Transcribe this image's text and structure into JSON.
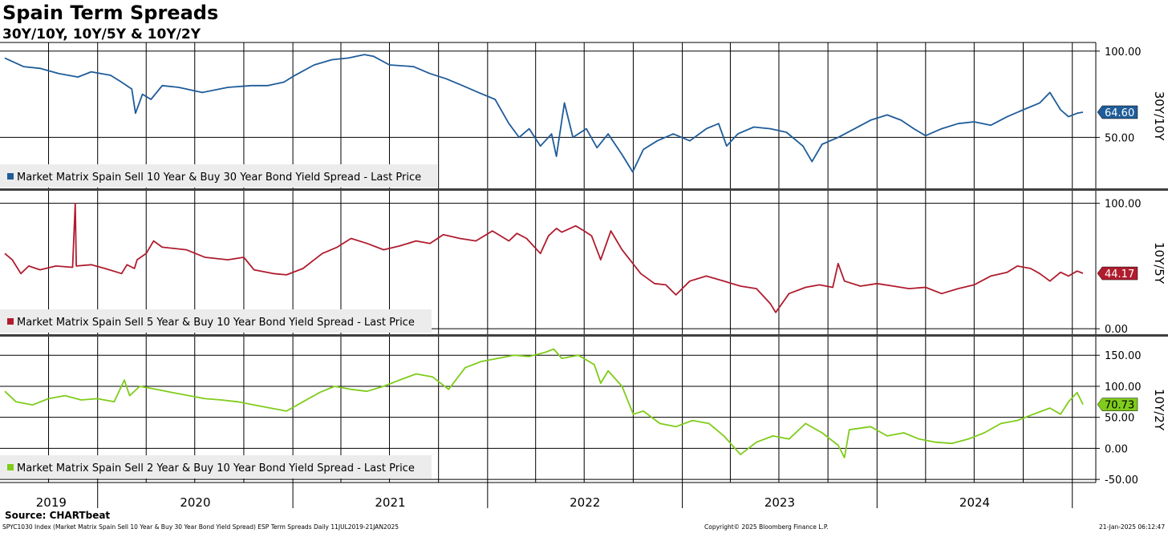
{
  "header": {
    "title": "Spain Term Spreads",
    "subtitle": "30Y/10Y, 10Y/5Y & 10Y/2Y"
  },
  "footer": {
    "source": "Source: CHARTbeat",
    "description": "SPYC1030 Index (Market Matrix Spain Sell 10 Year & Buy 30 Year Bond Yield Spread) ESP Term Spreads  Daily 11JUL2019-21JAN2025",
    "copyright": "Copyright© 2025 Bloomberg Finance L.P.",
    "timestamp": "21-Jan-2025 06:12:47"
  },
  "colors": {
    "blue": "#1f5c99",
    "red": "#b01c2e",
    "green": "#7fcc1a",
    "grid": "#000000",
    "divider": "#404040"
  },
  "chart_data": {
    "type": "line",
    "x_range": [
      "2019-07-11",
      "2025-01-21"
    ],
    "x_axis": {
      "year_labels": [
        "2019",
        "2020",
        "2021",
        "2022",
        "2023",
        "2024"
      ]
    },
    "panels": [
      {
        "id": "30y10y",
        "axis_title": "30Y/10Y",
        "ylim": [
          20,
          105
        ],
        "ticks": [
          100,
          50
        ],
        "tick_labels": [
          "100.00",
          "50.00"
        ],
        "legend": "Market Matrix Spain Sell 10 Year & Buy 30 Year Bond Yield Spread - Last Price",
        "last_value": 64.6,
        "last_label": "64.60",
        "color": "blue",
        "series": [
          [
            "2019-07-11",
            96
          ],
          [
            "2019-08-15",
            91
          ],
          [
            "2019-09-15",
            90
          ],
          [
            "2019-10-20",
            87
          ],
          [
            "2019-11-25",
            85
          ],
          [
            "2019-12-20",
            88
          ],
          [
            "2020-01-25",
            86
          ],
          [
            "2020-02-15",
            82
          ],
          [
            "2020-03-05",
            78
          ],
          [
            "2020-03-12",
            64
          ],
          [
            "2020-03-25",
            75
          ],
          [
            "2020-04-10",
            72
          ],
          [
            "2020-05-01",
            80
          ],
          [
            "2020-06-01",
            79
          ],
          [
            "2020-07-15",
            76
          ],
          [
            "2020-09-01",
            79
          ],
          [
            "2020-10-15",
            80
          ],
          [
            "2020-11-15",
            80
          ],
          [
            "2020-12-15",
            82
          ],
          [
            "2021-01-05",
            86
          ],
          [
            "2021-02-10",
            92
          ],
          [
            "2021-03-15",
            95
          ],
          [
            "2021-04-15",
            96
          ],
          [
            "2021-05-15",
            98
          ],
          [
            "2021-06-01",
            97
          ],
          [
            "2021-07-01",
            92
          ],
          [
            "2021-08-15",
            91
          ],
          [
            "2021-09-15",
            87
          ],
          [
            "2021-10-15",
            84
          ],
          [
            "2021-11-15",
            80
          ],
          [
            "2021-12-15",
            76
          ],
          [
            "2022-01-15",
            72
          ],
          [
            "2022-02-10",
            58
          ],
          [
            "2022-03-01",
            50
          ],
          [
            "2022-03-20",
            55
          ],
          [
            "2022-04-10",
            45
          ],
          [
            "2022-05-01",
            52
          ],
          [
            "2022-05-10",
            39
          ],
          [
            "2022-05-25",
            70
          ],
          [
            "2022-06-10",
            50
          ],
          [
            "2022-07-05",
            55
          ],
          [
            "2022-07-25",
            44
          ],
          [
            "2022-08-15",
            52
          ],
          [
            "2022-09-10",
            40
          ],
          [
            "2022-09-30",
            30
          ],
          [
            "2022-10-20",
            43
          ],
          [
            "2022-11-15",
            48
          ],
          [
            "2022-12-15",
            52
          ],
          [
            "2023-01-15",
            48
          ],
          [
            "2023-02-15",
            55
          ],
          [
            "2023-03-10",
            58
          ],
          [
            "2023-03-25",
            45
          ],
          [
            "2023-04-15",
            52
          ],
          [
            "2023-05-15",
            56
          ],
          [
            "2023-06-15",
            55
          ],
          [
            "2023-07-15",
            53
          ],
          [
            "2023-08-15",
            45
          ],
          [
            "2023-09-01",
            36
          ],
          [
            "2023-09-20",
            46
          ],
          [
            "2023-10-20",
            50
          ],
          [
            "2023-11-20",
            55
          ],
          [
            "2023-12-20",
            60
          ],
          [
            "2024-01-20",
            63
          ],
          [
            "2024-02-15",
            60
          ],
          [
            "2024-03-10",
            55
          ],
          [
            "2024-04-01",
            51
          ],
          [
            "2024-05-01",
            55
          ],
          [
            "2024-06-01",
            58
          ],
          [
            "2024-07-01",
            59
          ],
          [
            "2024-08-01",
            57
          ],
          [
            "2024-09-01",
            62
          ],
          [
            "2024-10-01",
            66
          ],
          [
            "2024-11-01",
            70
          ],
          [
            "2024-11-20",
            76
          ],
          [
            "2024-12-10",
            66
          ],
          [
            "2024-12-25",
            62
          ],
          [
            "2025-01-10",
            64
          ],
          [
            "2025-01-21",
            64.6
          ]
        ]
      },
      {
        "id": "10y5y",
        "axis_title": "10Y/5Y",
        "ylim": [
          -5,
          110
        ],
        "ticks": [
          100,
          0
        ],
        "tick_labels": [
          "100.00",
          "0.00"
        ],
        "legend": "Market Matrix Spain Sell 5 Year & Buy 10 Year Bond Yield Spread - Last Price",
        "last_value": 44.17,
        "last_label": "44.17",
        "color": "red",
        "series": [
          [
            "2019-07-11",
            60
          ],
          [
            "2019-07-25",
            55
          ],
          [
            "2019-08-10",
            44
          ],
          [
            "2019-08-25",
            50
          ],
          [
            "2019-09-15",
            47
          ],
          [
            "2019-10-15",
            50
          ],
          [
            "2019-11-15",
            49
          ],
          [
            "2019-11-20",
            100
          ],
          [
            "2019-11-22",
            50
          ],
          [
            "2019-12-20",
            51
          ],
          [
            "2020-01-15",
            48
          ],
          [
            "2020-02-15",
            44
          ],
          [
            "2020-02-25",
            51
          ],
          [
            "2020-03-10",
            48
          ],
          [
            "2020-03-15",
            55
          ],
          [
            "2020-04-01",
            60
          ],
          [
            "2020-04-15",
            70
          ],
          [
            "2020-05-01",
            65
          ],
          [
            "2020-06-15",
            63
          ],
          [
            "2020-07-20",
            57
          ],
          [
            "2020-09-01",
            55
          ],
          [
            "2020-10-01",
            57
          ],
          [
            "2020-10-20",
            47
          ],
          [
            "2020-11-25",
            44
          ],
          [
            "2020-12-20",
            43
          ],
          [
            "2021-01-20",
            48
          ],
          [
            "2021-02-10",
            55
          ],
          [
            "2021-02-25",
            60
          ],
          [
            "2021-03-25",
            65
          ],
          [
            "2021-04-20",
            72
          ],
          [
            "2021-05-20",
            68
          ],
          [
            "2021-06-20",
            63
          ],
          [
            "2021-07-20",
            66
          ],
          [
            "2021-08-20",
            70
          ],
          [
            "2021-09-15",
            68
          ],
          [
            "2021-10-10",
            75
          ],
          [
            "2021-11-10",
            72
          ],
          [
            "2021-12-10",
            70
          ],
          [
            "2022-01-10",
            78
          ],
          [
            "2022-02-10",
            70
          ],
          [
            "2022-02-25",
            76
          ],
          [
            "2022-03-15",
            72
          ],
          [
            "2022-04-10",
            60
          ],
          [
            "2022-04-25",
            74
          ],
          [
            "2022-05-10",
            80
          ],
          [
            "2022-05-20",
            77
          ],
          [
            "2022-06-15",
            82
          ],
          [
            "2022-07-01",
            78
          ],
          [
            "2022-07-15",
            74
          ],
          [
            "2022-08-01",
            55
          ],
          [
            "2022-08-20",
            78
          ],
          [
            "2022-09-10",
            63
          ],
          [
            "2022-10-15",
            44
          ],
          [
            "2022-11-10",
            36
          ],
          [
            "2022-12-01",
            35
          ],
          [
            "2022-12-20",
            27
          ],
          [
            "2023-01-15",
            38
          ],
          [
            "2023-02-15",
            42
          ],
          [
            "2023-03-20",
            38
          ],
          [
            "2023-04-20",
            34
          ],
          [
            "2023-05-20",
            32
          ],
          [
            "2023-06-15",
            20
          ],
          [
            "2023-06-25",
            13
          ],
          [
            "2023-07-20",
            28
          ],
          [
            "2023-08-20",
            33
          ],
          [
            "2023-09-15",
            35
          ],
          [
            "2023-10-10",
            33
          ],
          [
            "2023-10-20",
            52
          ],
          [
            "2023-11-01",
            38
          ],
          [
            "2023-12-01",
            34
          ],
          [
            "2024-01-01",
            36
          ],
          [
            "2024-02-01",
            34
          ],
          [
            "2024-03-01",
            32
          ],
          [
            "2024-04-01",
            33
          ],
          [
            "2024-05-01",
            28
          ],
          [
            "2024-06-01",
            32
          ],
          [
            "2024-07-01",
            35
          ],
          [
            "2024-08-01",
            42
          ],
          [
            "2024-09-01",
            45
          ],
          [
            "2024-09-20",
            50
          ],
          [
            "2024-10-15",
            48
          ],
          [
            "2024-11-01",
            44
          ],
          [
            "2024-11-20",
            38
          ],
          [
            "2024-12-10",
            45
          ],
          [
            "2024-12-25",
            42
          ],
          [
            "2025-01-10",
            46
          ],
          [
            "2025-01-21",
            44.17
          ]
        ]
      },
      {
        "id": "10y2y",
        "axis_title": "10Y/2Y",
        "ylim": [
          -55,
          180
        ],
        "ticks": [
          150,
          100,
          50,
          0,
          -50
        ],
        "tick_labels": [
          "150.00",
          "100.00",
          "50.00",
          "0.00",
          "-50.00"
        ],
        "legend": "Market Matrix Spain Sell 2 Year & Buy 10 Year Bond Yield Spread - Last Price",
        "last_value": 70.73,
        "last_label": "70.73",
        "color": "green",
        "series": [
          [
            "2019-07-11",
            92
          ],
          [
            "2019-08-01",
            75
          ],
          [
            "2019-09-01",
            70
          ],
          [
            "2019-10-01",
            80
          ],
          [
            "2019-11-01",
            85
          ],
          [
            "2019-12-01",
            78
          ],
          [
            "2020-01-01",
            80
          ],
          [
            "2020-02-01",
            75
          ],
          [
            "2020-02-20",
            110
          ],
          [
            "2020-03-01",
            85
          ],
          [
            "2020-03-20",
            100
          ],
          [
            "2020-04-20",
            95
          ],
          [
            "2020-05-20",
            90
          ],
          [
            "2020-06-20",
            85
          ],
          [
            "2020-07-20",
            80
          ],
          [
            "2020-08-20",
            78
          ],
          [
            "2020-09-20",
            75
          ],
          [
            "2020-10-20",
            70
          ],
          [
            "2020-11-20",
            65
          ],
          [
            "2020-12-20",
            60
          ],
          [
            "2021-01-20",
            75
          ],
          [
            "2021-02-20",
            90
          ],
          [
            "2021-03-20",
            100
          ],
          [
            "2021-04-20",
            95
          ],
          [
            "2021-05-20",
            92
          ],
          [
            "2021-06-20",
            100
          ],
          [
            "2021-07-20",
            110
          ],
          [
            "2021-08-20",
            120
          ],
          [
            "2021-09-20",
            115
          ],
          [
            "2021-10-20",
            95
          ],
          [
            "2021-11-20",
            130
          ],
          [
            "2021-12-20",
            140
          ],
          [
            "2022-01-20",
            145
          ],
          [
            "2022-02-20",
            150
          ],
          [
            "2022-03-20",
            148
          ],
          [
            "2022-04-20",
            155
          ],
          [
            "2022-05-05",
            160
          ],
          [
            "2022-05-20",
            145
          ],
          [
            "2022-06-20",
            150
          ],
          [
            "2022-07-20",
            135
          ],
          [
            "2022-08-01",
            105
          ],
          [
            "2022-08-15",
            125
          ],
          [
            "2022-09-10",
            100
          ],
          [
            "2022-10-01",
            55
          ],
          [
            "2022-10-20",
            60
          ],
          [
            "2022-11-20",
            40
          ],
          [
            "2022-12-20",
            35
          ],
          [
            "2023-01-20",
            45
          ],
          [
            "2023-02-20",
            40
          ],
          [
            "2023-03-20",
            20
          ],
          [
            "2023-04-20",
            -10
          ],
          [
            "2023-05-20",
            10
          ],
          [
            "2023-06-20",
            20
          ],
          [
            "2023-07-20",
            15
          ],
          [
            "2023-08-20",
            40
          ],
          [
            "2023-09-20",
            25
          ],
          [
            "2023-10-20",
            5
          ],
          [
            "2023-11-01",
            -15
          ],
          [
            "2023-11-10",
            30
          ],
          [
            "2023-12-20",
            35
          ],
          [
            "2024-01-20",
            20
          ],
          [
            "2024-02-20",
            25
          ],
          [
            "2024-03-20",
            15
          ],
          [
            "2024-04-20",
            10
          ],
          [
            "2024-05-20",
            8
          ],
          [
            "2024-06-20",
            15
          ],
          [
            "2024-07-20",
            25
          ],
          [
            "2024-08-20",
            40
          ],
          [
            "2024-09-20",
            45
          ],
          [
            "2024-10-20",
            55
          ],
          [
            "2024-11-20",
            65
          ],
          [
            "2024-12-10",
            55
          ],
          [
            "2024-12-25",
            75
          ],
          [
            "2025-01-10",
            90
          ],
          [
            "2025-01-21",
            70.73
          ]
        ]
      }
    ]
  }
}
